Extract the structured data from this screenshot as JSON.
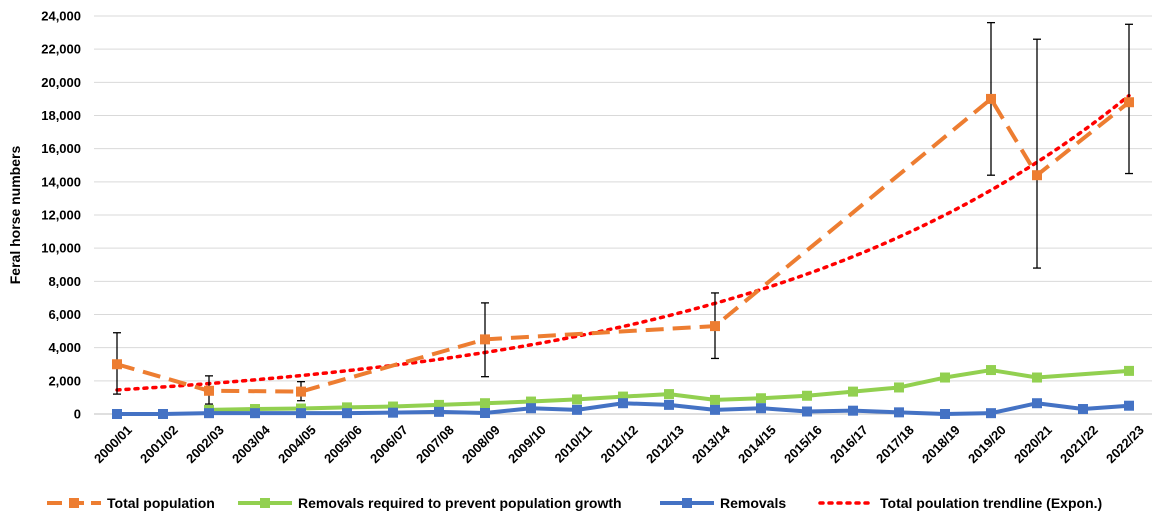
{
  "chart_data": {
    "type": "line",
    "title": "",
    "xlabel": "",
    "ylabel": "Feral horse numbers",
    "ylim": [
      0,
      24000
    ],
    "yticks": [
      0,
      2000,
      4000,
      6000,
      8000,
      10000,
      12000,
      14000,
      16000,
      18000,
      20000,
      22000,
      24000
    ],
    "ytick_labels": [
      "0",
      "2,000",
      "4,000",
      "6,000",
      "8,000",
      "10,000",
      "12,000",
      "14,000",
      "16,000",
      "18,000",
      "20,000",
      "22,000",
      "24,000"
    ],
    "grid": true,
    "legend_position": "bottom",
    "categories": [
      "2000/01",
      "2001/02",
      "2002/03",
      "2003/04",
      "2004/05",
      "2005/06",
      "2006/07",
      "2007/08",
      "2008/09",
      "2009/10",
      "2010/11",
      "2011/12",
      "2012/13",
      "2013/14",
      "2014/15",
      "2015/16",
      "2016/17",
      "2017/18",
      "2018/19",
      "2019/20",
      "2020/21",
      "2021/22",
      "2022/23"
    ],
    "series": [
      {
        "name": "Total population",
        "color": "#ED7D31",
        "style": "dashed",
        "marker": "square",
        "points": [
          {
            "x": "2000/01",
            "y": 3000,
            "err_low": 1200,
            "err_high": 4900
          },
          {
            "x": "2002/03",
            "y": 1400,
            "err_low": 600,
            "err_high": 2300
          },
          {
            "x": "2004/05",
            "y": 1350,
            "err_low": 800,
            "err_high": 1950
          },
          {
            "x": "2008/09",
            "y": 4500,
            "err_low": 2250,
            "err_high": 6700
          },
          {
            "x": "2013/14",
            "y": 5300,
            "err_low": 3350,
            "err_high": 7300
          },
          {
            "x": "2019/20",
            "y": 19000,
            "err_low": 14400,
            "err_high": 23600
          },
          {
            "x": "2020/21",
            "y": 14400,
            "err_low": 8800,
            "err_high": 22600
          },
          {
            "x": "2022/23",
            "y": 18800,
            "err_low": 14500,
            "err_high": 23500
          }
        ]
      },
      {
        "name": "Removals required to prevent population growth",
        "color": "#92D050",
        "style": "solid",
        "marker": "square",
        "points": [
          {
            "x": "2002/03",
            "y": 250
          },
          {
            "x": "2003/04",
            "y": 300
          },
          {
            "x": "2004/05",
            "y": 330
          },
          {
            "x": "2005/06",
            "y": 400
          },
          {
            "x": "2006/07",
            "y": 450
          },
          {
            "x": "2007/08",
            "y": 550
          },
          {
            "x": "2008/09",
            "y": 650
          },
          {
            "x": "2009/10",
            "y": 750
          },
          {
            "x": "2010/11",
            "y": 880
          },
          {
            "x": "2011/12",
            "y": 1050
          },
          {
            "x": "2012/13",
            "y": 1200
          },
          {
            "x": "2013/14",
            "y": 850
          },
          {
            "x": "2014/15",
            "y": 950
          },
          {
            "x": "2015/16",
            "y": 1100
          },
          {
            "x": "2016/17",
            "y": 1350
          },
          {
            "x": "2017/18",
            "y": 1600
          },
          {
            "x": "2018/19",
            "y": 2200
          },
          {
            "x": "2019/20",
            "y": 2650
          },
          {
            "x": "2020/21",
            "y": 2200
          },
          {
            "x": "2022/23",
            "y": 2600
          }
        ]
      },
      {
        "name": "Removals",
        "color": "#4472C4",
        "style": "solid",
        "marker": "square",
        "points": [
          {
            "x": "2000/01",
            "y": 0
          },
          {
            "x": "2001/02",
            "y": 0
          },
          {
            "x": "2002/03",
            "y": 50
          },
          {
            "x": "2003/04",
            "y": 50
          },
          {
            "x": "2004/05",
            "y": 50
          },
          {
            "x": "2005/06",
            "y": 50
          },
          {
            "x": "2006/07",
            "y": 80
          },
          {
            "x": "2007/08",
            "y": 130
          },
          {
            "x": "2008/09",
            "y": 60
          },
          {
            "x": "2009/10",
            "y": 350
          },
          {
            "x": "2010/11",
            "y": 250
          },
          {
            "x": "2011/12",
            "y": 650
          },
          {
            "x": "2012/13",
            "y": 550
          },
          {
            "x": "2013/14",
            "y": 250
          },
          {
            "x": "2014/15",
            "y": 350
          },
          {
            "x": "2015/16",
            "y": 150
          },
          {
            "x": "2016/17",
            "y": 200
          },
          {
            "x": "2017/18",
            "y": 100
          },
          {
            "x": "2018/19",
            "y": 0
          },
          {
            "x": "2019/20",
            "y": 50
          },
          {
            "x": "2020/21",
            "y": 650
          },
          {
            "x": "2021/22",
            "y": 300
          },
          {
            "x": "2022/23",
            "y": 500
          }
        ]
      },
      {
        "name": "Total poulation trendline (Expon.)",
        "color": "#FF0000",
        "style": "dotted",
        "marker": "none",
        "trendline": {
          "type": "exponential",
          "from": "2000/01",
          "to": "2022/23",
          "start_value": 1450,
          "end_value": 19200
        }
      }
    ]
  }
}
